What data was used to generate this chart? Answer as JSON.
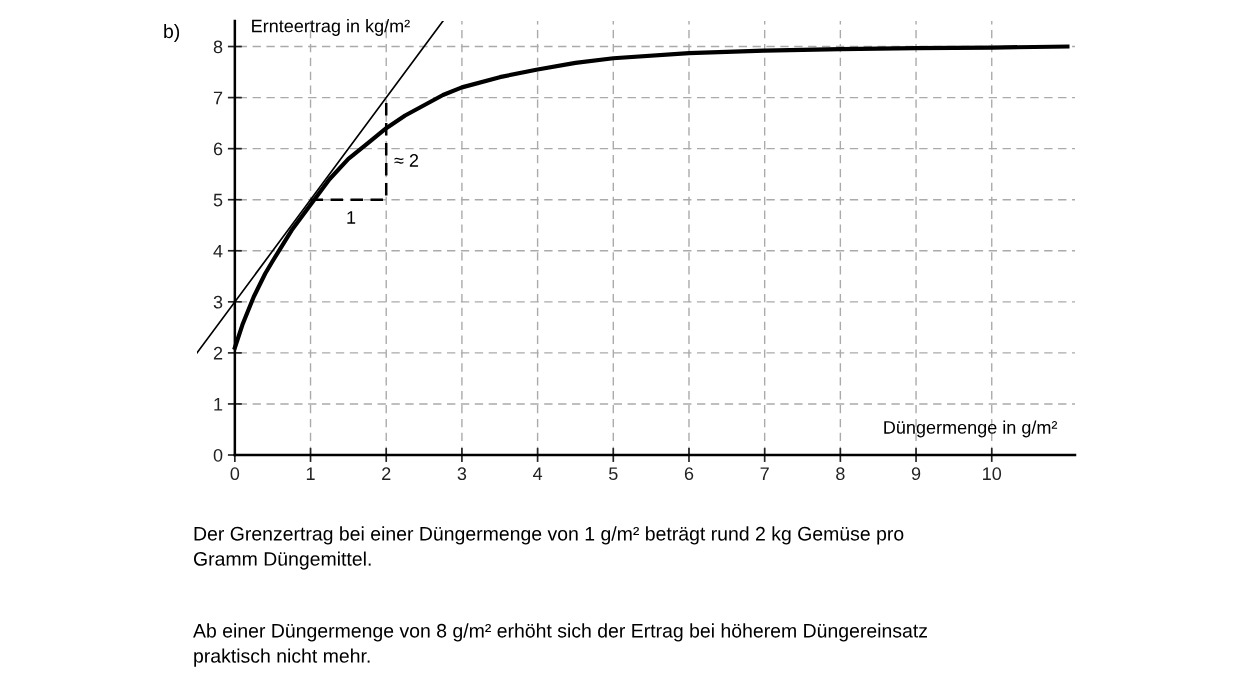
{
  "chart_data": {
    "type": "line",
    "xlabel": "Düngermenge in g/m²",
    "ylabel": "Ernteertrag in kg/m²",
    "xlim": [
      -0.5,
      11.1
    ],
    "ylim": [
      0,
      8.5
    ],
    "xticks": [
      0,
      1,
      2,
      3,
      4,
      5,
      6,
      7,
      8,
      9,
      10
    ],
    "yticks": [
      0,
      1,
      2,
      3,
      4,
      5,
      6,
      7,
      8
    ],
    "grid": true,
    "series": [
      {
        "color": "#000000",
        "line_style": "solid",
        "x": [
          0,
          0.1,
          0.25,
          0.4,
          0.5,
          0.75,
          1,
          1.25,
          1.5,
          1.75,
          2,
          2.25,
          2.5,
          2.75,
          3,
          3.5,
          4,
          4.5,
          5,
          6,
          7,
          8,
          9,
          10,
          11
        ],
        "values": [
          2.1,
          2.55,
          3.1,
          3.55,
          3.8,
          4.4,
          4.9,
          5.4,
          5.8,
          6.1,
          6.4,
          6.65,
          6.85,
          7.05,
          7.2,
          7.4,
          7.55,
          7.68,
          7.77,
          7.87,
          7.92,
          7.95,
          7.97,
          7.98,
          8.0
        ]
      },
      {
        "color": "#000000",
        "line_style": "solid",
        "x": [
          -0.5,
          2.75
        ],
        "values": [
          2,
          8.5
        ]
      },
      {
        "color": "#000000",
        "line_style": "dashed",
        "x": [
          1,
          2,
          2
        ],
        "values": [
          5,
          5,
          7
        ]
      }
    ],
    "annotations": [
      "b)",
      "1",
      "≈ 2",
      "Der Grenzertrag bei einer Düngermenge von 1 g/m² beträgt rund 2 kg Gemüse pro\nGramm Düngemittel.",
      "Ab einer Düngermenge von 8 g/m² erhöht sich der Ertrag bei höherem Düngereinsatz\npraktisch nicht mehr."
    ]
  }
}
